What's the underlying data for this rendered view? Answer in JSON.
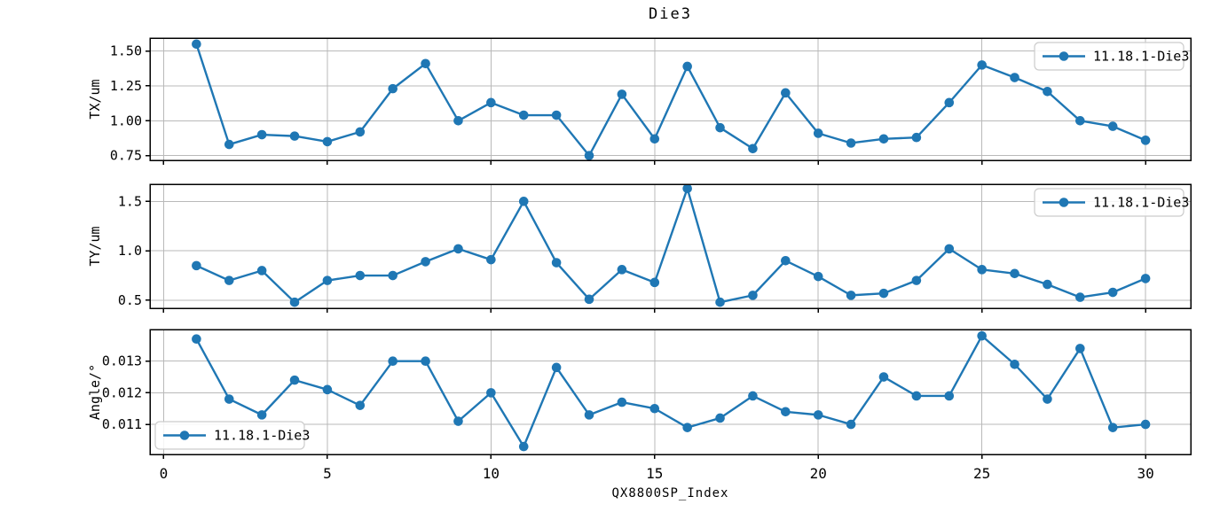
{
  "title": "Die3",
  "xlabel": "QX8800SP_Index",
  "legend_label": "11.18.1-Die3",
  "colors": {
    "series": "#1f77b4",
    "grid": "#b9b9b9",
    "axis": "#000000",
    "legend_border": "#cccccc",
    "legend_fill": "rgba(255,255,255,0.85)"
  },
  "chart_data": [
    {
      "type": "line",
      "ylabel": "TX/um",
      "legend": "11.18.1-Die3",
      "legend_position": "top-right",
      "grid": true,
      "xlim": [
        -0.42,
        31.38
      ],
      "xticks": [
        0,
        5,
        10,
        15,
        20,
        25,
        30
      ],
      "show_xtick_labels": false,
      "ylim": [
        0.716,
        1.593
      ],
      "yticks": [
        0.75,
        1.0,
        1.25,
        1.5
      ],
      "ytick_labels": [
        "0.75",
        "1.00",
        "1.25",
        "1.50"
      ],
      "x": [
        1,
        2,
        3,
        4,
        5,
        6,
        7,
        8,
        9,
        10,
        11,
        12,
        13,
        14,
        15,
        16,
        17,
        18,
        19,
        20,
        21,
        22,
        23,
        24,
        25,
        26,
        27,
        28,
        29,
        30
      ],
      "series": [
        {
          "name": "11.18.1-Die3",
          "values": [
            1.55,
            0.83,
            0.9,
            0.89,
            0.85,
            0.92,
            1.23,
            1.41,
            1.0,
            1.13,
            1.04,
            1.04,
            0.75,
            1.19,
            0.87,
            1.39,
            0.95,
            0.8,
            1.2,
            0.91,
            0.84,
            0.87,
            0.88,
            1.13,
            1.4,
            1.31,
            1.21,
            1.0,
            0.96,
            0.86
          ]
        }
      ]
    },
    {
      "type": "line",
      "ylabel": "TY/um",
      "legend": "11.18.1-Die3",
      "legend_position": "top-right",
      "grid": true,
      "xlim": [
        -0.42,
        31.38
      ],
      "xticks": [
        0,
        5,
        10,
        15,
        20,
        25,
        30
      ],
      "show_xtick_labels": false,
      "ylim": [
        0.419,
        1.673
      ],
      "yticks": [
        0.5,
        1.0,
        1.5
      ],
      "ytick_labels": [
        "0.5",
        "1.0",
        "1.5"
      ],
      "x": [
        1,
        2,
        3,
        4,
        5,
        6,
        7,
        8,
        9,
        10,
        11,
        12,
        13,
        14,
        15,
        16,
        17,
        18,
        19,
        20,
        21,
        22,
        23,
        24,
        25,
        26,
        27,
        28,
        29,
        30
      ],
      "series": [
        {
          "name": "11.18.1-Die3",
          "values": [
            0.85,
            0.7,
            0.8,
            0.48,
            0.7,
            0.75,
            0.75,
            0.89,
            1.02,
            0.91,
            1.5,
            0.88,
            0.51,
            0.81,
            0.68,
            1.63,
            0.48,
            0.55,
            0.9,
            0.74,
            0.55,
            0.57,
            0.7,
            1.02,
            0.81,
            0.77,
            0.66,
            0.53,
            0.58,
            0.72
          ]
        }
      ]
    },
    {
      "type": "line",
      "ylabel": "Angle/°",
      "xlabel": "QX8800SP_Index",
      "legend": "11.18.1-Die3",
      "legend_position": "bottom-left",
      "grid": true,
      "xlim": [
        -0.42,
        31.38
      ],
      "xticks": [
        0,
        5,
        10,
        15,
        20,
        25,
        30
      ],
      "xtick_labels": [
        "0",
        "5",
        "10",
        "15",
        "20",
        "25",
        "30"
      ],
      "show_xtick_labels": true,
      "ylim": [
        0.01005,
        0.014
      ],
      "yticks": [
        0.011,
        0.012,
        0.013
      ],
      "ytick_labels": [
        "0.011",
        "0.012",
        "0.013"
      ],
      "x": [
        1,
        2,
        3,
        4,
        5,
        6,
        7,
        8,
        9,
        10,
        11,
        12,
        13,
        14,
        15,
        16,
        17,
        18,
        19,
        20,
        21,
        22,
        23,
        24,
        25,
        26,
        27,
        28,
        29,
        30
      ],
      "series": [
        {
          "name": "11.18.1-Die3",
          "values": [
            0.0137,
            0.0118,
            0.0113,
            0.0124,
            0.0121,
            0.0116,
            0.013,
            0.013,
            0.0111,
            0.012,
            0.0103,
            0.0128,
            0.0113,
            0.0117,
            0.0115,
            0.0109,
            0.0112,
            0.0119,
            0.0114,
            0.0113,
            0.011,
            0.0125,
            0.0119,
            0.0119,
            0.0138,
            0.0129,
            0.0118,
            0.0134,
            0.0109,
            0.011
          ]
        }
      ]
    }
  ]
}
